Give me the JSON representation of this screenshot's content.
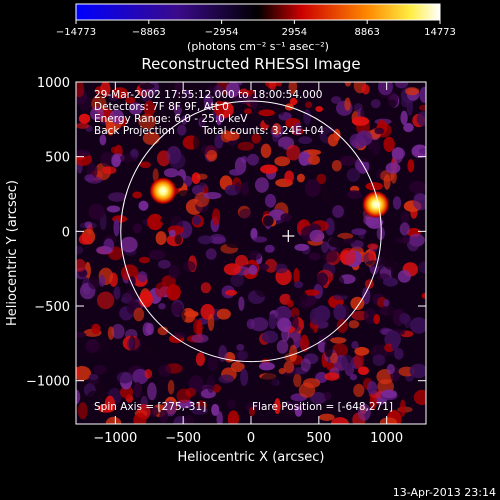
{
  "chart_data": {
    "type": "heatmap",
    "title": "Reconstructed RHESSI Image",
    "xlabel": "Heliocentric X (arcsec)",
    "ylabel": "Heliocentric Y (arcsec)",
    "xlim": [
      -1290,
      1290
    ],
    "ylim": [
      -1290,
      1000
    ],
    "x_ticks": [
      -1000,
      -500,
      0,
      500,
      1000
    ],
    "x_tick_labels": [
      "−1000",
      "−500",
      "0",
      "500",
      "1000"
    ],
    "y_ticks": [
      -1000,
      -500,
      0,
      500,
      1000
    ],
    "y_tick_labels": [
      "−1000",
      "−500",
      "0",
      "500",
      "1000"
    ],
    "colorbar": {
      "min": -14773,
      "max": 14773,
      "ticks": [
        -14773,
        -8863,
        -2954,
        2954,
        8863,
        14773
      ],
      "tick_labels": [
        "−14773",
        "−8863",
        "−2954",
        "2954",
        "8863",
        "14773"
      ],
      "unit_label": "(photons cm⁻² s⁻¹ asec⁻²)",
      "colors": [
        "#0000ff",
        "#4b0082",
        "#000000",
        "#ff0000",
        "#ffa500",
        "#ffffff"
      ]
    },
    "annotations": {
      "time_range": "29-Mar-2002 17:55:12.000 to 18:00:54.000",
      "detectors": "Detectors: 7F 8F 9F, Att 0",
      "energy": "Energy Range: 6.0 - 25.0 keV",
      "method": "Back Projection",
      "counts": "Total counts: 3.24E+04",
      "spin_axis": "Spin Axis = [275,-31]",
      "flare_position": "Flare Position = [-648,271]"
    },
    "sources": [
      {
        "x": -648,
        "y": 271,
        "intensity": 14773
      },
      {
        "x": 920,
        "y": 180,
        "intensity": 13500
      }
    ],
    "spin_axis_marker": {
      "x": 275,
      "y": -31
    },
    "solar_limb_circle": {
      "center_x": 0,
      "center_y": 0,
      "radius": 960
    },
    "footer_timestamp": "13-Apr-2013 23:14"
  }
}
